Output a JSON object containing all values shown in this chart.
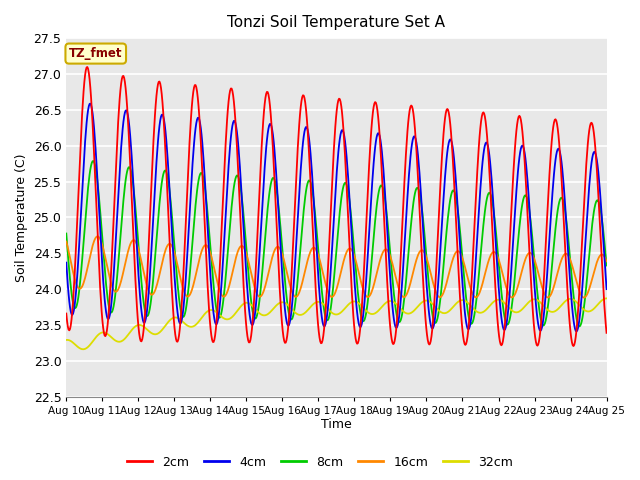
{
  "title": "Tonzi Soil Temperature Set A",
  "xlabel": "Time",
  "ylabel": "Soil Temperature (C)",
  "ylim": [
    22.5,
    27.5
  ],
  "x_tick_labels": [
    "Aug 10",
    "Aug 11",
    "Aug 12",
    "Aug 13",
    "Aug 14",
    "Aug 15",
    "Aug 16",
    "Aug 17",
    "Aug 18",
    "Aug 19",
    "Aug 20",
    "Aug 21",
    "Aug 22",
    "Aug 23",
    "Aug 24",
    "Aug 25"
  ],
  "colors": {
    "2cm": "#ff0000",
    "4cm": "#0000ee",
    "8cm": "#00cc00",
    "16cm": "#ff8800",
    "32cm": "#dddd00"
  },
  "annotation_text": "TZ_fmet",
  "annotation_bg": "#ffffcc",
  "annotation_border": "#ccaa00",
  "bg_color": "#e8e8e8",
  "grid_color": "#ffffff",
  "figsize": [
    6.4,
    4.8
  ],
  "dpi": 100
}
